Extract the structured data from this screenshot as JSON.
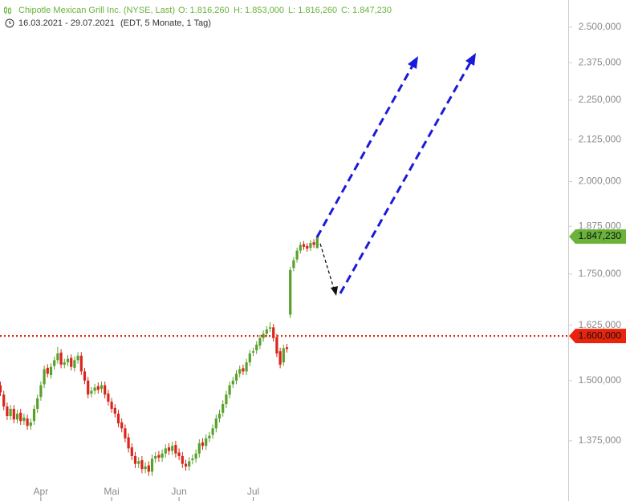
{
  "chart_data": {
    "type": "candlestick",
    "title": "Chipotle Mexican Grill Inc. (NYSE, Last)",
    "ohlc_labels": [
      "O: 1.816,260",
      "H: 1.853,000",
      "L: 1.816,260",
      "C: 1.847,230"
    ],
    "period": "16.03.2021 - 29.07.2021",
    "period_note": "(EDT, 5 Monate, 1 Tag)",
    "log_scale": true,
    "colors": {
      "up": "#5aa02c",
      "down": "#d9261c"
    },
    "categories": [
      null,
      null,
      null,
      null,
      null,
      null,
      null,
      null,
      null,
      null,
      null,
      null,
      "Apr",
      null,
      null,
      null,
      null,
      null,
      null,
      null,
      null,
      null,
      null,
      null,
      null,
      null,
      null,
      null,
      null,
      null,
      null,
      null,
      null,
      "Mai",
      null,
      null,
      null,
      null,
      null,
      null,
      null,
      null,
      null,
      null,
      null,
      null,
      null,
      null,
      null,
      null,
      null,
      null,
      null,
      "Jun",
      null,
      null,
      null,
      null,
      null,
      null,
      null,
      null,
      null,
      null,
      null,
      null,
      null,
      null,
      null,
      null,
      null,
      null,
      null,
      null,
      null,
      "Jul",
      null,
      null,
      null,
      null,
      null,
      null,
      null,
      null,
      null,
      null,
      null,
      null,
      null,
      null,
      null,
      null,
      null,
      null,
      null
    ],
    "open": [
      1490000,
      1470000,
      1445000,
      1425000,
      1440000,
      1418000,
      1432000,
      1415000,
      1420000,
      1405000,
      1415000,
      1440000,
      1465000,
      1492000,
      1528000,
      1512000,
      1532000,
      1545000,
      1562000,
      1535000,
      1540000,
      1550000,
      1528000,
      1545000,
      1555000,
      1520000,
      1500000,
      1472000,
      1478000,
      1488000,
      1482000,
      1490000,
      1472000,
      1455000,
      1442000,
      1430000,
      1412000,
      1400000,
      1382000,
      1362000,
      1345000,
      1330000,
      1337000,
      1320000,
      1327000,
      1315000,
      1340000,
      1347000,
      1342000,
      1350000,
      1362000,
      1355000,
      1367000,
      1352000,
      1345000,
      1330000,
      1325000,
      1337000,
      1340000,
      1350000,
      1372000,
      1365000,
      1380000,
      1387000,
      1400000,
      1420000,
      1432000,
      1450000,
      1470000,
      1492000,
      1500000,
      1515000,
      1527000,
      1520000,
      1540000,
      1562000,
      1567000,
      1578000,
      1595000,
      1605000,
      1617000,
      1620000,
      1597000,
      1565000,
      1540000,
      1574000,
      1650000,
      1765000,
      1787000,
      1810000,
      1827000,
      1822000,
      1817000,
      1832000,
      1816260
    ],
    "high": [
      1498000,
      1478000,
      1453000,
      1448000,
      1448000,
      1438000,
      1440000,
      1430000,
      1428000,
      1420000,
      1448000,
      1470000,
      1498000,
      1533000,
      1536000,
      1538000,
      1553000,
      1575000,
      1570000,
      1548000,
      1556000,
      1558000,
      1553000,
      1563000,
      1563000,
      1528000,
      1508000,
      1486000,
      1493000,
      1496000,
      1498000,
      1498000,
      1480000,
      1463000,
      1450000,
      1438000,
      1420000,
      1408000,
      1390000,
      1370000,
      1353000,
      1343000,
      1345000,
      1333000,
      1335000,
      1348000,
      1353000,
      1355000,
      1358000,
      1368000,
      1370000,
      1373000,
      1375000,
      1360000,
      1353000,
      1338000,
      1343000,
      1348000,
      1358000,
      1378000,
      1380000,
      1388000,
      1393000,
      1408000,
      1428000,
      1438000,
      1458000,
      1478000,
      1498000,
      1508000,
      1523000,
      1533000,
      1535000,
      1548000,
      1568000,
      1573000,
      1588000,
      1603000,
      1613000,
      1623000,
      1632000,
      1628000,
      1605000,
      1573000,
      1580000,
      1582000,
      1768000,
      1793000,
      1818000,
      1833000,
      1835000,
      1830000,
      1838000,
      1840000,
      1853000
    ],
    "low": [
      1467000,
      1437000,
      1417000,
      1417000,
      1410000,
      1410000,
      1407000,
      1407000,
      1397000,
      1397000,
      1407000,
      1432000,
      1457000,
      1484000,
      1507000,
      1504000,
      1524000,
      1537000,
      1527000,
      1527000,
      1532000,
      1522000,
      1520000,
      1537000,
      1512000,
      1492000,
      1462000,
      1464000,
      1470000,
      1472000,
      1474000,
      1462000,
      1447000,
      1432000,
      1422000,
      1402000,
      1392000,
      1372000,
      1352000,
      1337000,
      1322000,
      1322000,
      1312000,
      1312000,
      1307000,
      1307000,
      1332000,
      1334000,
      1334000,
      1342000,
      1347000,
      1347000,
      1342000,
      1337000,
      1322000,
      1317000,
      1317000,
      1329000,
      1332000,
      1342000,
      1357000,
      1357000,
      1372000,
      1379000,
      1392000,
      1412000,
      1424000,
      1442000,
      1462000,
      1484000,
      1492000,
      1507000,
      1512000,
      1512000,
      1532000,
      1554000,
      1559000,
      1570000,
      1587000,
      1597000,
      1609000,
      1587000,
      1552000,
      1527000,
      1532000,
      1562000,
      1642000,
      1757000,
      1779000,
      1802000,
      1812000,
      1807000,
      1809000,
      1817000,
      1816260
    ],
    "close": [
      1475000,
      1445000,
      1425000,
      1440000,
      1418000,
      1430000,
      1415000,
      1422000,
      1405000,
      1412000,
      1440000,
      1462000,
      1490000,
      1525000,
      1515000,
      1530000,
      1545000,
      1560000,
      1535000,
      1540000,
      1548000,
      1530000,
      1545000,
      1555000,
      1520000,
      1500000,
      1470000,
      1478000,
      1485000,
      1480000,
      1490000,
      1470000,
      1455000,
      1440000,
      1430000,
      1410000,
      1400000,
      1380000,
      1360000,
      1345000,
      1330000,
      1335000,
      1320000,
      1325000,
      1315000,
      1340000,
      1345000,
      1342000,
      1350000,
      1360000,
      1355000,
      1365000,
      1350000,
      1345000,
      1330000,
      1325000,
      1335000,
      1340000,
      1350000,
      1370000,
      1365000,
      1380000,
      1385000,
      1400000,
      1420000,
      1430000,
      1450000,
      1470000,
      1490000,
      1500000,
      1515000,
      1525000,
      1520000,
      1540000,
      1560000,
      1565000,
      1580000,
      1595000,
      1605000,
      1615000,
      1620000,
      1595000,
      1560000,
      1535000,
      1572000,
      1570000,
      1760000,
      1785000,
      1810000,
      1825000,
      1820000,
      1815000,
      1830000,
      1825000,
      1847230
    ],
    "ylim": [
      1290000,
      2600000
    ],
    "yticks": [
      {
        "value": 1375000,
        "label": "1.375,000"
      },
      {
        "value": 1500000,
        "label": "1.500,000"
      },
      {
        "value": 1625000,
        "label": "1.625,000"
      },
      {
        "value": 1750000,
        "label": "1.750,000"
      },
      {
        "value": 1875000,
        "label": "1.875,000"
      },
      {
        "value": 2000000,
        "label": "2.000,000"
      },
      {
        "value": 2125000,
        "label": "2.125,000"
      },
      {
        "value": 2250000,
        "label": "2.250,000"
      },
      {
        "value": 2375000,
        "label": "2.375,000"
      },
      {
        "value": 2500000,
        "label": "2.500,000"
      }
    ],
    "hline": {
      "value": 1600000,
      "label": "1.600,000",
      "color": "#e8250c"
    },
    "last_price": {
      "value": 1847230,
      "label": "1.847,230",
      "color": "#6ab23a"
    }
  }
}
